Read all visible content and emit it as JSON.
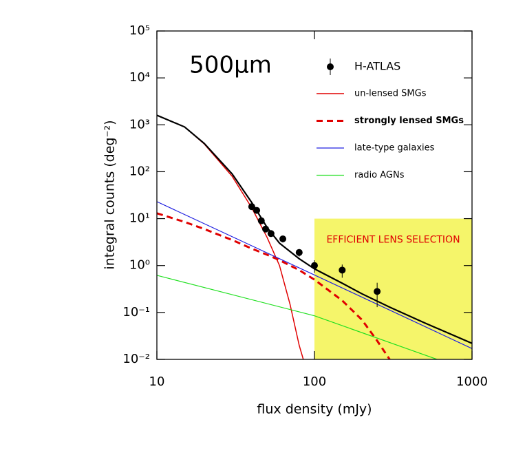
{
  "chart_data": {
    "type": "line",
    "annotation": "500μm",
    "x_label": "flux density (mJy)",
    "y_label": "integral counts (deg⁻²)",
    "log_x": true,
    "log_y": true,
    "grid": false,
    "xlim": [
      10,
      1000
    ],
    "ylim": [
      0.01,
      100000
    ],
    "xticks": [
      10,
      100,
      1000
    ],
    "yticks": [
      {
        "value": 0.01,
        "label": "10⁻²"
      },
      {
        "value": 0.1,
        "label": "10⁻¹"
      },
      {
        "value": 1,
        "label": "10⁰"
      },
      {
        "value": 10,
        "label": "10¹"
      },
      {
        "value": 100,
        "label": "10²"
      },
      {
        "value": 1000,
        "label": "10³"
      },
      {
        "value": 10000,
        "label": "10⁴"
      },
      {
        "value": 100000,
        "label": "10⁵"
      }
    ],
    "region": {
      "label": "EFFICIENT LENS SELECTION",
      "color": "#f5f56a",
      "label_color": "#e00000",
      "xlim": [
        100,
        1000
      ],
      "ylim": [
        0.01,
        10
      ]
    },
    "points": {
      "name": "H-ATLAS",
      "color": "#000000",
      "x": [
        40,
        43,
        46,
        49,
        53,
        63,
        80,
        100,
        150,
        250
      ],
      "values": [
        18,
        15,
        9,
        6,
        4.8,
        3.7,
        1.9,
        1.0,
        0.8,
        0.28
      ],
      "errors": [
        1.5,
        1.5,
        1,
        0.8,
        0.7,
        0.6,
        0.35,
        0.3,
        0.25,
        0.15
      ]
    },
    "series": [
      {
        "name": "un-lensed SMGs",
        "color": "#e00000",
        "dash": false,
        "width": 1.5,
        "x": [
          10,
          15,
          20,
          30,
          40,
          50,
          60,
          70,
          80,
          85
        ],
        "values": [
          1600,
          900,
          390,
          80,
          17,
          4,
          1.0,
          0.15,
          0.02,
          0.01
        ]
      },
      {
        "name": "strongly lensed SMGs",
        "color": "#e00000",
        "dash": true,
        "width": 3,
        "x": [
          10,
          15,
          20,
          30,
          40,
          50,
          60,
          80,
          100,
          150,
          200,
          250,
          300
        ],
        "values": [
          13,
          8.5,
          6,
          3.5,
          2.3,
          1.7,
          1.3,
          0.8,
          0.5,
          0.18,
          0.07,
          0.025,
          0.01
        ]
      },
      {
        "name": "late-type galaxies",
        "color": "#2020e0",
        "dash": false,
        "width": 1.2,
        "x": [
          10,
          100,
          1000
        ],
        "values": [
          23,
          0.63,
          0.017
        ]
      },
      {
        "name": "radio AGNs",
        "color": "#20e020",
        "dash": false,
        "width": 1.2,
        "x": [
          10,
          100,
          600
        ],
        "values": [
          0.62,
          0.085,
          0.01
        ]
      },
      {
        "color": "#000000",
        "dash": false,
        "width": 2.2,
        "x": [
          10,
          15,
          20,
          30,
          40,
          50,
          60,
          80,
          100,
          150,
          200,
          300,
          500,
          1000
        ],
        "values": [
          1600,
          900,
          400,
          90,
          22,
          6.5,
          3,
          1.4,
          0.85,
          0.42,
          0.25,
          0.13,
          0.06,
          0.022
        ]
      }
    ]
  }
}
